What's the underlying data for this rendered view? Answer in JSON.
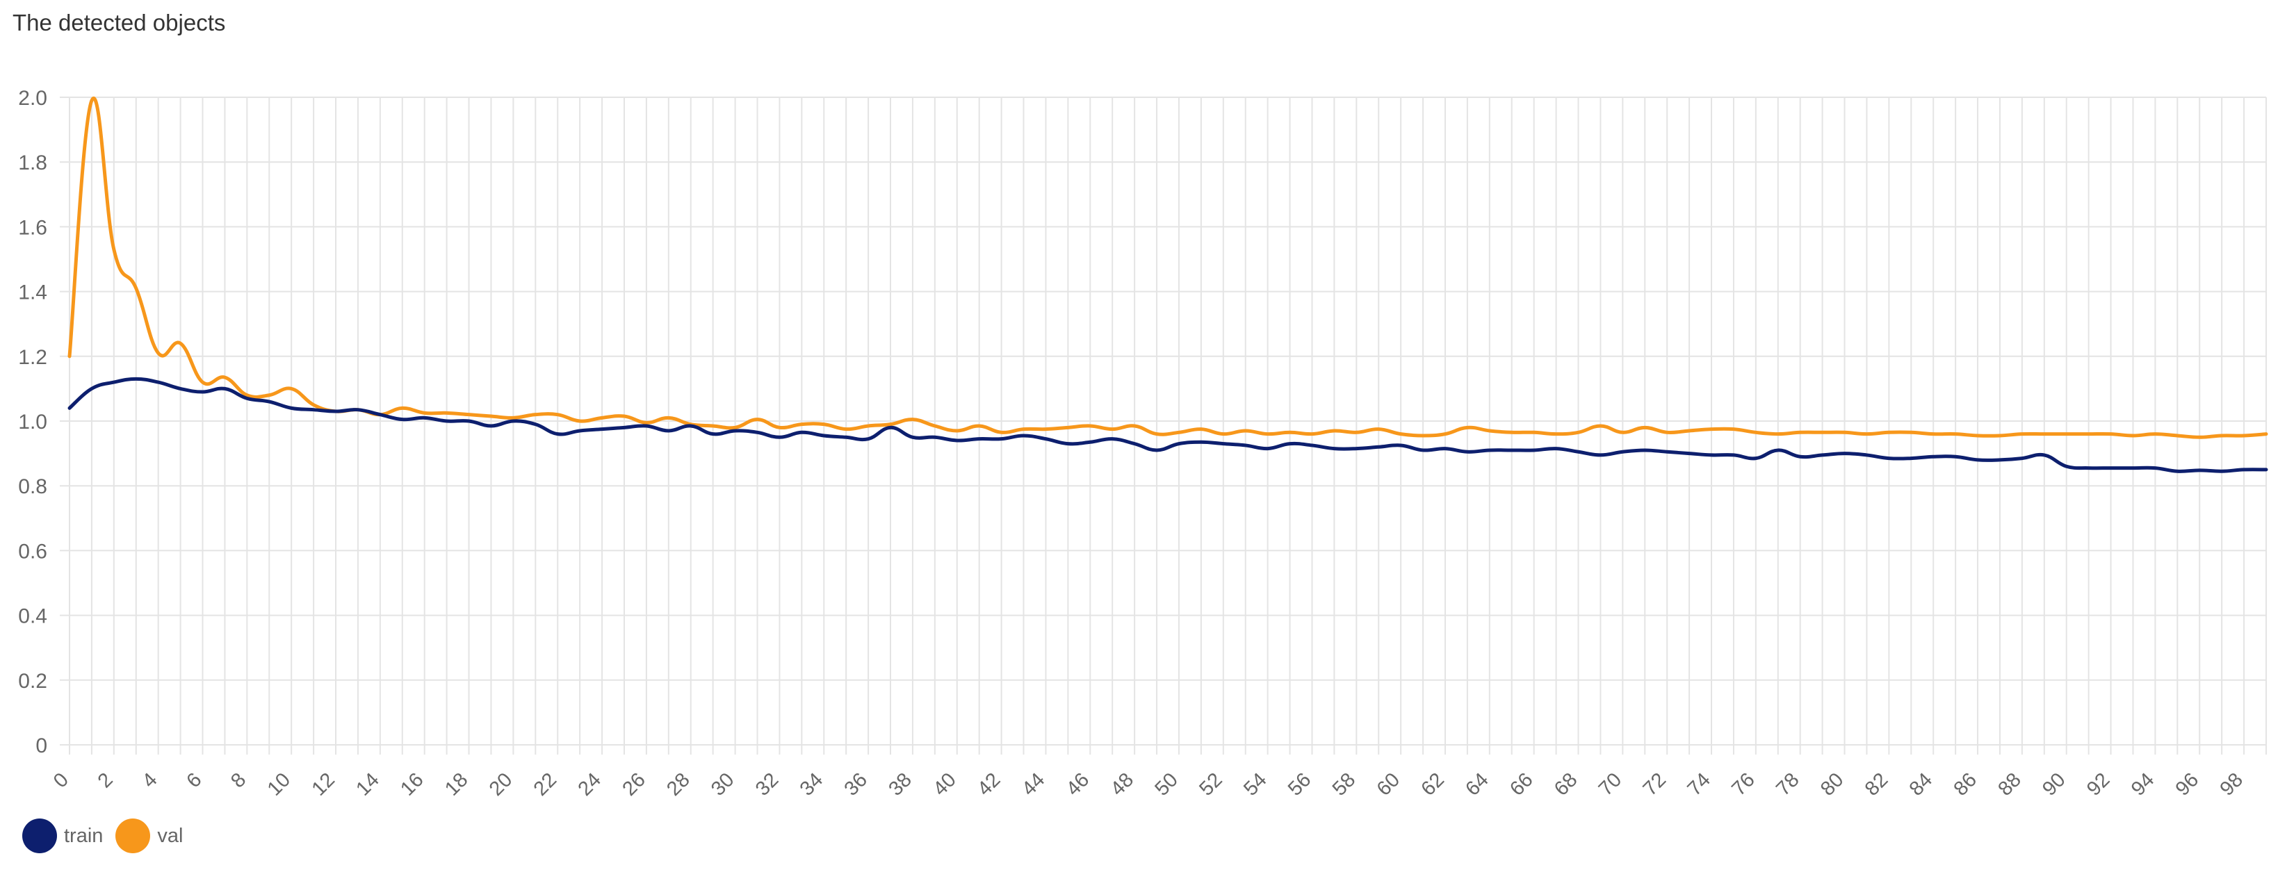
{
  "chart_data": {
    "type": "line",
    "title": "The detected objects",
    "ylim": [
      0,
      2.0
    ],
    "yticks": [
      "0",
      "0.2",
      "0.4",
      "0.6",
      "0.8",
      "1.0",
      "1.2",
      "1.4",
      "1.6",
      "1.8",
      "2.0"
    ],
    "x_range": [
      0,
      99
    ],
    "xticks": [
      "0",
      "2",
      "4",
      "6",
      "8",
      "10",
      "12",
      "14",
      "16",
      "18",
      "20",
      "22",
      "24",
      "26",
      "28",
      "30",
      "32",
      "34",
      "36",
      "38",
      "40",
      "42",
      "44",
      "46",
      "48",
      "50",
      "52",
      "54",
      "56",
      "58",
      "60",
      "62",
      "64",
      "66",
      "68",
      "70",
      "72",
      "74",
      "76",
      "78",
      "80",
      "82",
      "84",
      "86",
      "88",
      "90",
      "92",
      "94",
      "96",
      "98"
    ],
    "grid": true,
    "legend_position": "bottom-left",
    "series": [
      {
        "name": "train",
        "color": "#0d1f6e",
        "values": [
          1.04,
          1.1,
          1.12,
          1.13,
          1.12,
          1.1,
          1.09,
          1.1,
          1.07,
          1.06,
          1.04,
          1.035,
          1.03,
          1.035,
          1.02,
          1.005,
          1.01,
          1.0,
          1.0,
          0.985,
          1.0,
          0.99,
          0.96,
          0.97,
          0.975,
          0.98,
          0.985,
          0.97,
          0.985,
          0.96,
          0.97,
          0.965,
          0.95,
          0.965,
          0.955,
          0.95,
          0.945,
          0.98,
          0.95,
          0.95,
          0.94,
          0.945,
          0.945,
          0.955,
          0.945,
          0.93,
          0.935,
          0.945,
          0.93,
          0.91,
          0.93,
          0.935,
          0.93,
          0.925,
          0.915,
          0.93,
          0.925,
          0.915,
          0.915,
          0.92,
          0.925,
          0.91,
          0.915,
          0.905,
          0.91,
          0.91,
          0.91,
          0.915,
          0.905,
          0.895,
          0.905,
          0.91,
          0.905,
          0.9,
          0.895,
          0.895,
          0.885,
          0.91,
          0.89,
          0.895,
          0.9,
          0.895,
          0.885,
          0.885,
          0.89,
          0.89,
          0.88,
          0.88,
          0.885,
          0.895,
          0.86,
          0.855,
          0.855,
          0.855,
          0.855,
          0.845,
          0.848,
          0.845,
          0.85,
          0.85
        ]
      },
      {
        "name": "val",
        "color": "#f7971b",
        "values": [
          1.2,
          1.99,
          1.53,
          1.41,
          1.21,
          1.24,
          1.12,
          1.135,
          1.08,
          1.08,
          1.1,
          1.05,
          1.03,
          1.035,
          1.02,
          1.04,
          1.025,
          1.025,
          1.02,
          1.015,
          1.01,
          1.02,
          1.02,
          1.0,
          1.01,
          1.015,
          0.995,
          1.01,
          0.99,
          0.985,
          0.98,
          1.005,
          0.98,
          0.99,
          0.99,
          0.975,
          0.985,
          0.99,
          1.005,
          0.985,
          0.97,
          0.985,
          0.965,
          0.975,
          0.975,
          0.98,
          0.985,
          0.975,
          0.985,
          0.96,
          0.965,
          0.975,
          0.96,
          0.97,
          0.96,
          0.965,
          0.96,
          0.97,
          0.965,
          0.975,
          0.96,
          0.955,
          0.96,
          0.98,
          0.97,
          0.965,
          0.965,
          0.96,
          0.965,
          0.985,
          0.965,
          0.98,
          0.965,
          0.97,
          0.975,
          0.975,
          0.965,
          0.96,
          0.965,
          0.965,
          0.965,
          0.96,
          0.965,
          0.965,
          0.96,
          0.96,
          0.955,
          0.955,
          0.96,
          0.96,
          0.96,
          0.96,
          0.96,
          0.955,
          0.96,
          0.955,
          0.95,
          0.955,
          0.955,
          0.96
        ]
      }
    ]
  }
}
